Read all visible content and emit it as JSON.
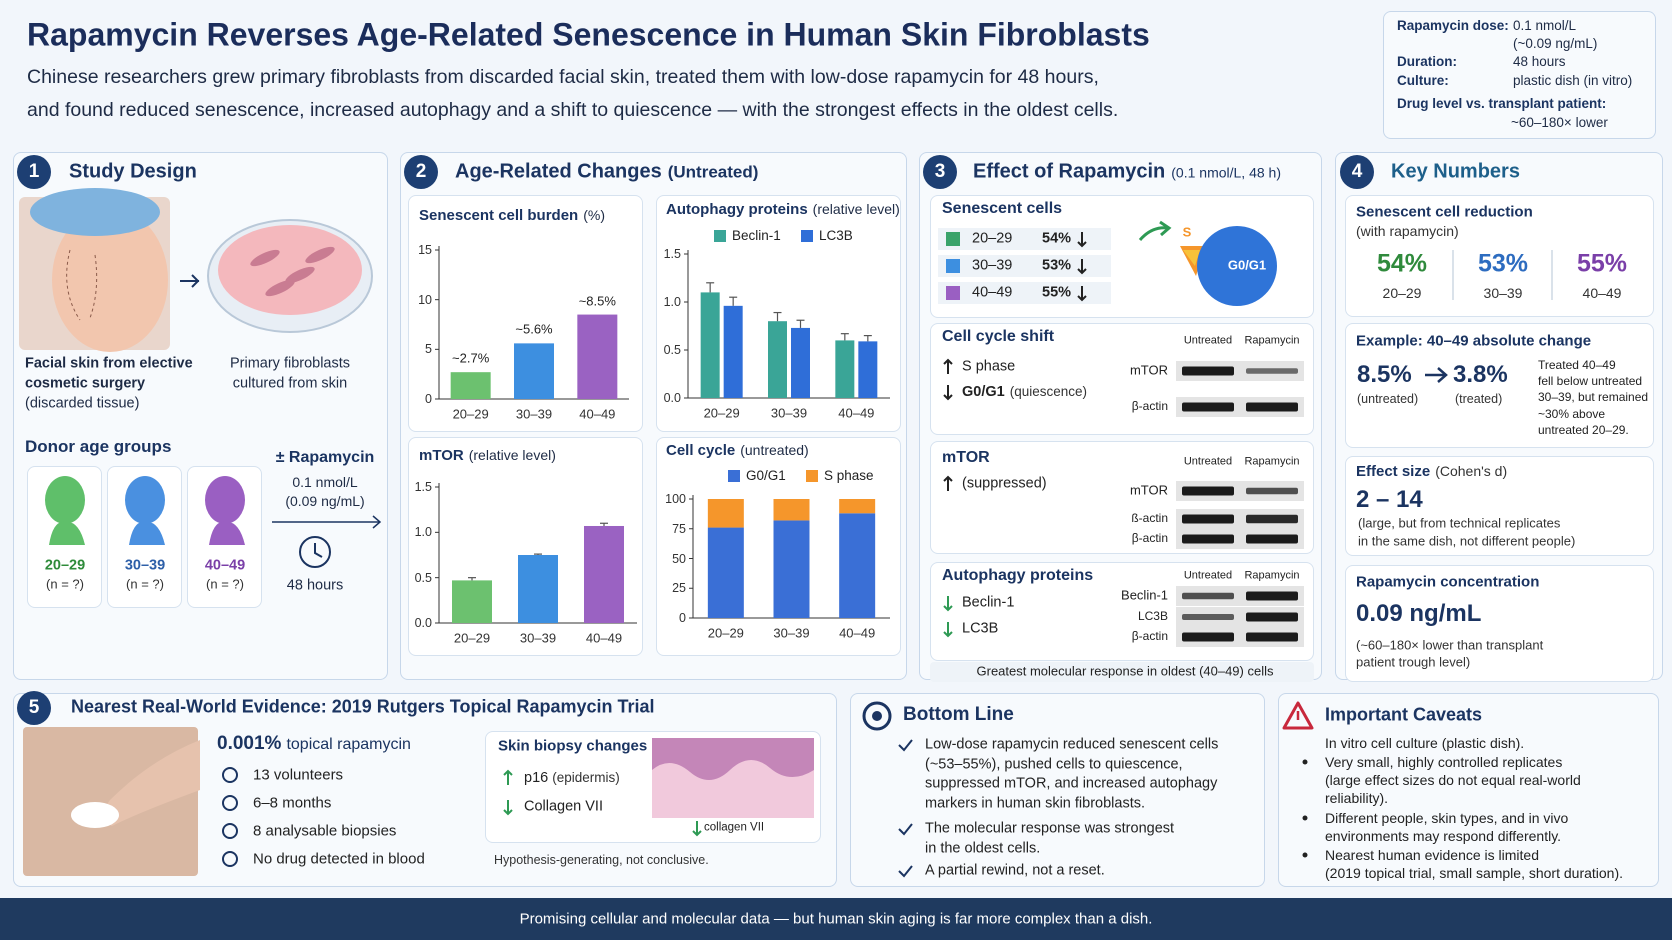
{
  "header": {
    "title": "Rapamycin Reverses Age-Related Senescence in Human Skin Fibroblasts",
    "subtitle": [
      "Chinese researchers grew primary fibroblasts from discarded facial skin, treated them with low-dose rapamycin for 48 hours,",
      "and found reduced senescence, increased autophagy and a shift to quiescence — with the strongest effects in the oldest cells."
    ]
  },
  "summary_box": {
    "rows": [
      {
        "label": "Rapamycin dose:",
        "value": [
          "0.1 nmol/L",
          "(~0.09 ng/mL)"
        ]
      },
      {
        "label": "Duration:",
        "value": [
          "48 hours"
        ]
      },
      {
        "label": "Culture:",
        "value": [
          "plastic dish (in vitro)"
        ]
      }
    ],
    "drug_level": {
      "label": "Drug level vs. transplant patient:",
      "value": "~60–180× lower"
    }
  },
  "study_design": {
    "number": "1",
    "title": "Study Design",
    "skin_caption": [
      "Facial skin from elective",
      "cosmetic surgery",
      "(discarded tissue)"
    ],
    "cell_caption": [
      "Primary fibroblasts",
      "cultured from skin"
    ],
    "donor_title": "Donor age groups",
    "donors": [
      {
        "age": "20–29",
        "n": "(n = ?)"
      },
      {
        "age": "30–39",
        "n": "(n = ?)"
      },
      {
        "age": "40–49",
        "n": "(n = ?)"
      }
    ],
    "treatment": [
      "± Rapamycin",
      "0.1 nmol/L",
      "(0.09 ng/mL)"
    ],
    "duration": "48 hours"
  },
  "age_changes": {
    "number": "2",
    "title": "Age-Related Changes",
    "title_note": "(Untreated)"
  },
  "rapamycin_effect": {
    "number": "3",
    "title": "Effect of Rapamycin",
    "title_note": "(0.1 nmol/L, 48 h)",
    "senescent": {
      "title": "Senescent cells",
      "rows": [
        {
          "age": "20–29",
          "value": "54%"
        },
        {
          "age": "30–39",
          "value": "53%"
        },
        {
          "age": "40–49",
          "value": "55%"
        }
      ],
      "pie_labels": [
        "S",
        "G0/G1"
      ]
    },
    "cell_cycle": {
      "title": "Cell cycle shift",
      "items": [
        "S phase",
        "G0/G1"
      ],
      "item_note": "(quiescence)",
      "blot_headers": [
        "Untreated",
        "Rapamycin"
      ],
      "blot_labels": [
        "mTOR",
        "β-actin"
      ]
    },
    "mtor": {
      "title": "mTOR",
      "item": "(suppressed)",
      "blot_headers": [
        "Untreated",
        "Rapamycin"
      ],
      "blot_labels": [
        "mTOR",
        "ß-actin",
        "β-actin"
      ]
    },
    "autophagy": {
      "title": "Autophagy proteins",
      "items": [
        "Beclin-1",
        "LC3B"
      ],
      "blot_headers": [
        "Untreated",
        "Rapamycin"
      ],
      "blot_labels": [
        "Beclin-1",
        "LC3B",
        "β-actin"
      ]
    },
    "footer": "Greatest molecular response in oldest (40–49) cells"
  },
  "key_numbers": {
    "number": "4",
    "title": "Key Numbers",
    "reduction": {
      "title": "Senescent cell reduction",
      "subtitle": "(with rapamycin)",
      "items": [
        {
          "value": "54%",
          "age": "20–29"
        },
        {
          "value": "53%",
          "age": "30–39"
        },
        {
          "value": "55%",
          "age": "40–49"
        }
      ]
    },
    "example": {
      "title": "Example: 40–49 absolute change",
      "before": "8.5%",
      "before_label": "(untreated)",
      "after": "3.8%",
      "after_label": "(treated)",
      "note": [
        "Treated 40–49",
        "fell below untreated",
        "30–39, but remained",
        "~30% above",
        "untreated 20–29."
      ]
    },
    "effect_size": {
      "title": "Effect size",
      "title_note": "(Cohen's d)",
      "value": "2 – 14",
      "note": [
        "(large, but from technical replicates",
        "in the same dish, not different people)"
      ]
    },
    "concentration": {
      "title": "Rapamycin concentration",
      "value": "0.09 ng/mL",
      "note": [
        "(~60–180× lower than transplant",
        "patient trough level)"
      ]
    }
  },
  "real_world": {
    "number": "5",
    "title": "Nearest Real-World Evidence: 2019 Rutgers Topical Rapamycin Trial",
    "dose": "0.001%",
    "dose_note": "topical rapamycin",
    "facts": [
      "13 volunteers",
      "6–8 months",
      "8 analysable biopsies",
      "No drug detected in blood"
    ],
    "biopsy": {
      "title": "Skin biopsy changes",
      "items": [
        {
          "text": "p16",
          "note": "(epidermis)"
        },
        {
          "text": "Collagen VII"
        }
      ],
      "image_label": "collagen VII"
    },
    "footnote": "Hypothesis-generating, not conclusive."
  },
  "bottom_line": {
    "title": "Bottom Line",
    "items": [
      [
        "Low-dose rapamycin reduced senescent cells",
        "(~53–55%), pushed cells to quiescence,",
        "suppressed mTOR, and increased autophagy",
        "markers in human skin fibroblasts."
      ],
      [
        "The molecular response was strongest",
        "in the oldest cells."
      ],
      [
        "A partial rewind, not a reset."
      ]
    ]
  },
  "caveats": {
    "title": "Important Caveats",
    "items": [
      [
        "In vitro cell culture (plastic dish)."
      ],
      [
        "Very small, highly controlled replicates",
        "(large effect sizes do not equal real-world",
        "reliability)."
      ],
      [
        "Different people, skin types, and in vivo",
        "environments may respond differently."
      ],
      [
        "Nearest human evidence is limited",
        "(2019 topical trial, small sample, short duration)."
      ]
    ]
  },
  "footer": "Promising cellular and molecular data — but human skin aging is far more complex than a dish.",
  "chart_data": [
    {
      "type": "bar",
      "title": "Senescent cell burden",
      "title_note": "(%)",
      "categories": [
        "20–29",
        "30–39",
        "40–49"
      ],
      "values": [
        2.7,
        5.6,
        8.5
      ],
      "value_labels": [
        "~2.7%",
        "~5.6%",
        "~8.5%"
      ],
      "colors": [
        "#6cc16f",
        "#3d8fe0",
        "#9a62c2"
      ],
      "ylim": [
        0,
        15
      ],
      "yticks": [
        0,
        5,
        10,
        15
      ]
    },
    {
      "type": "bar",
      "title": "Autophagy proteins",
      "title_note": "(relative level)",
      "categories": [
        "20–29",
        "30–39",
        "40–49"
      ],
      "series": [
        {
          "name": "Beclin-1",
          "color": "#3aa597",
          "values": [
            1.1,
            0.8,
            0.6
          ],
          "errors": [
            0.1,
            0.09,
            0.07
          ]
        },
        {
          "name": "LC3B",
          "color": "#2f6ed8",
          "values": [
            0.96,
            0.73,
            0.59
          ],
          "errors": [
            0.09,
            0.08,
            0.06
          ]
        }
      ],
      "ylim": [
        0,
        1.5
      ],
      "yticks": [
        {
          "value": 0,
          "label": "0.0"
        },
        0.5,
        {
          "value": 1,
          "label": "1.0"
        },
        1.5
      ]
    },
    {
      "type": "bar",
      "title": "mTOR",
      "title_note": "(relative level)",
      "categories": [
        "20–29",
        "30–39",
        "40–49"
      ],
      "values": [
        0.47,
        0.75,
        1.07
      ],
      "errors": [
        0.03,
        0.01,
        0.03
      ],
      "colors": [
        "#6cc16f",
        "#3d8fe0",
        "#9a62c2"
      ],
      "ylim": [
        0,
        1.5
      ],
      "yticks": [
        {
          "value": 0,
          "label": "0.0"
        },
        0.5,
        {
          "value": 1,
          "label": "1.0"
        },
        1.5
      ]
    },
    {
      "type": "bar",
      "stacked": true,
      "title": "Cell cycle",
      "title_note": "(untreated)",
      "categories": [
        "20–29",
        "30–39",
        "40–49"
      ],
      "series": [
        {
          "name": "G0/G1",
          "color": "#3a6fd6",
          "values": [
            76,
            82,
            88
          ]
        },
        {
          "name": "S phase",
          "color": "#f5962b",
          "values": [
            24,
            18,
            12
          ]
        }
      ],
      "ylim": [
        0,
        100
      ],
      "yticks": [
        0,
        25,
        50,
        75,
        100
      ]
    }
  ]
}
